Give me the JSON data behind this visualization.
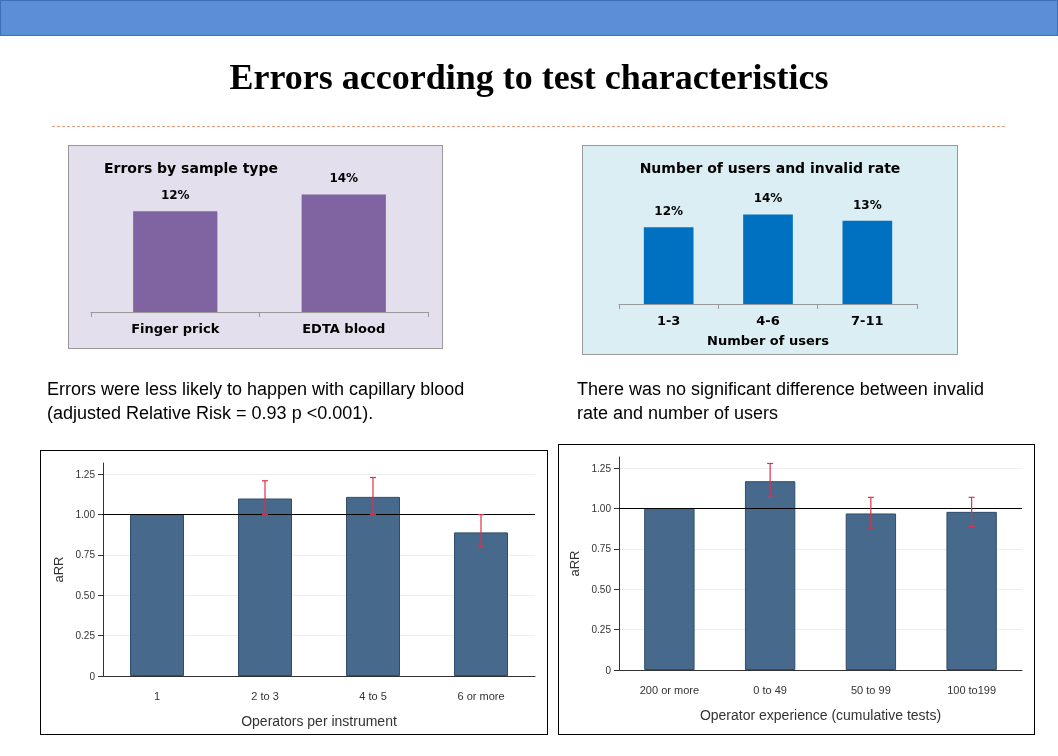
{
  "chart_data": [
    {
      "type": "bar",
      "title": "Errors by sample type",
      "categories": [
        "Finger prick",
        "EDTA blood"
      ],
      "values": [
        12,
        14
      ],
      "value_labels": [
        "12%",
        "14%"
      ],
      "color": "#8064a2",
      "grid": false,
      "annotations": [
        "Errors according to test characteristics",
        "Errors were less likely to happen with capillary blood (adjusted Relative Risk = 0.93 p <0.001)."
      ]
    },
    {
      "type": "bar",
      "title": "Number of users and invalid rate",
      "xlabel": "Number of users",
      "categories": [
        "1-3",
        "4-6",
        "7-11"
      ],
      "values": [
        12,
        14,
        13
      ],
      "value_labels": [
        "12%",
        "14%",
        "13%"
      ],
      "color": "#0070c0",
      "grid": false,
      "annotations": [
        "There was no significant difference between invalid rate and number of users"
      ]
    },
    {
      "type": "bar",
      "xlabel": "Operators per instrument",
      "ylabel": "aRR",
      "categories": [
        "1",
        "2 to 3",
        "4 to 5",
        "6 or more"
      ],
      "values": [
        1.0,
        1.1,
        1.11,
        0.89
      ],
      "errors": [
        null,
        [
          1.0,
          1.21
        ],
        [
          1.0,
          1.23
        ],
        [
          0.8,
          1.0
        ]
      ],
      "color": "#476a8c",
      "ylim": [
        0,
        1.32
      ],
      "yticks": [
        0,
        {
          "value": 0.25,
          "label": "0.25"
        },
        {
          "value": 0.5,
          "label": "0.50"
        },
        {
          "value": 0.75,
          "label": "0.75"
        },
        {
          "value": 1,
          "label": "1.00"
        },
        {
          "value": 1.25,
          "label": "1.25"
        }
      ],
      "grid": "y",
      "ref_lines": [
        {
          "axis": "y",
          "value": 1,
          "color": "#000000"
        }
      ]
    },
    {
      "type": "bar",
      "xlabel": "Operator experience (cumulative tests)",
      "ylabel": "aRR",
      "categories": [
        "200 or more",
        "0 to 49",
        "50 to 99",
        "100 to199"
      ],
      "values": [
        1.0,
        1.17,
        0.97,
        0.98
      ],
      "errors": [
        null,
        [
          1.07,
          1.28
        ],
        [
          0.88,
          1.07
        ],
        [
          0.89,
          1.07
        ]
      ],
      "color": "#476a8c",
      "ylim": [
        0,
        1.32
      ],
      "yticks": [
        0,
        {
          "value": 0.25,
          "label": "0.25"
        },
        {
          "value": 0.5,
          "label": "0.50"
        },
        {
          "value": 0.75,
          "label": "0.75"
        },
        {
          "value": 1,
          "label": "1.00"
        },
        {
          "value": 1.25,
          "label": "1.25"
        }
      ],
      "grid": "y",
      "ref_lines": [
        {
          "axis": "y",
          "value": 1,
          "color": "#000000"
        }
      ]
    }
  ]
}
